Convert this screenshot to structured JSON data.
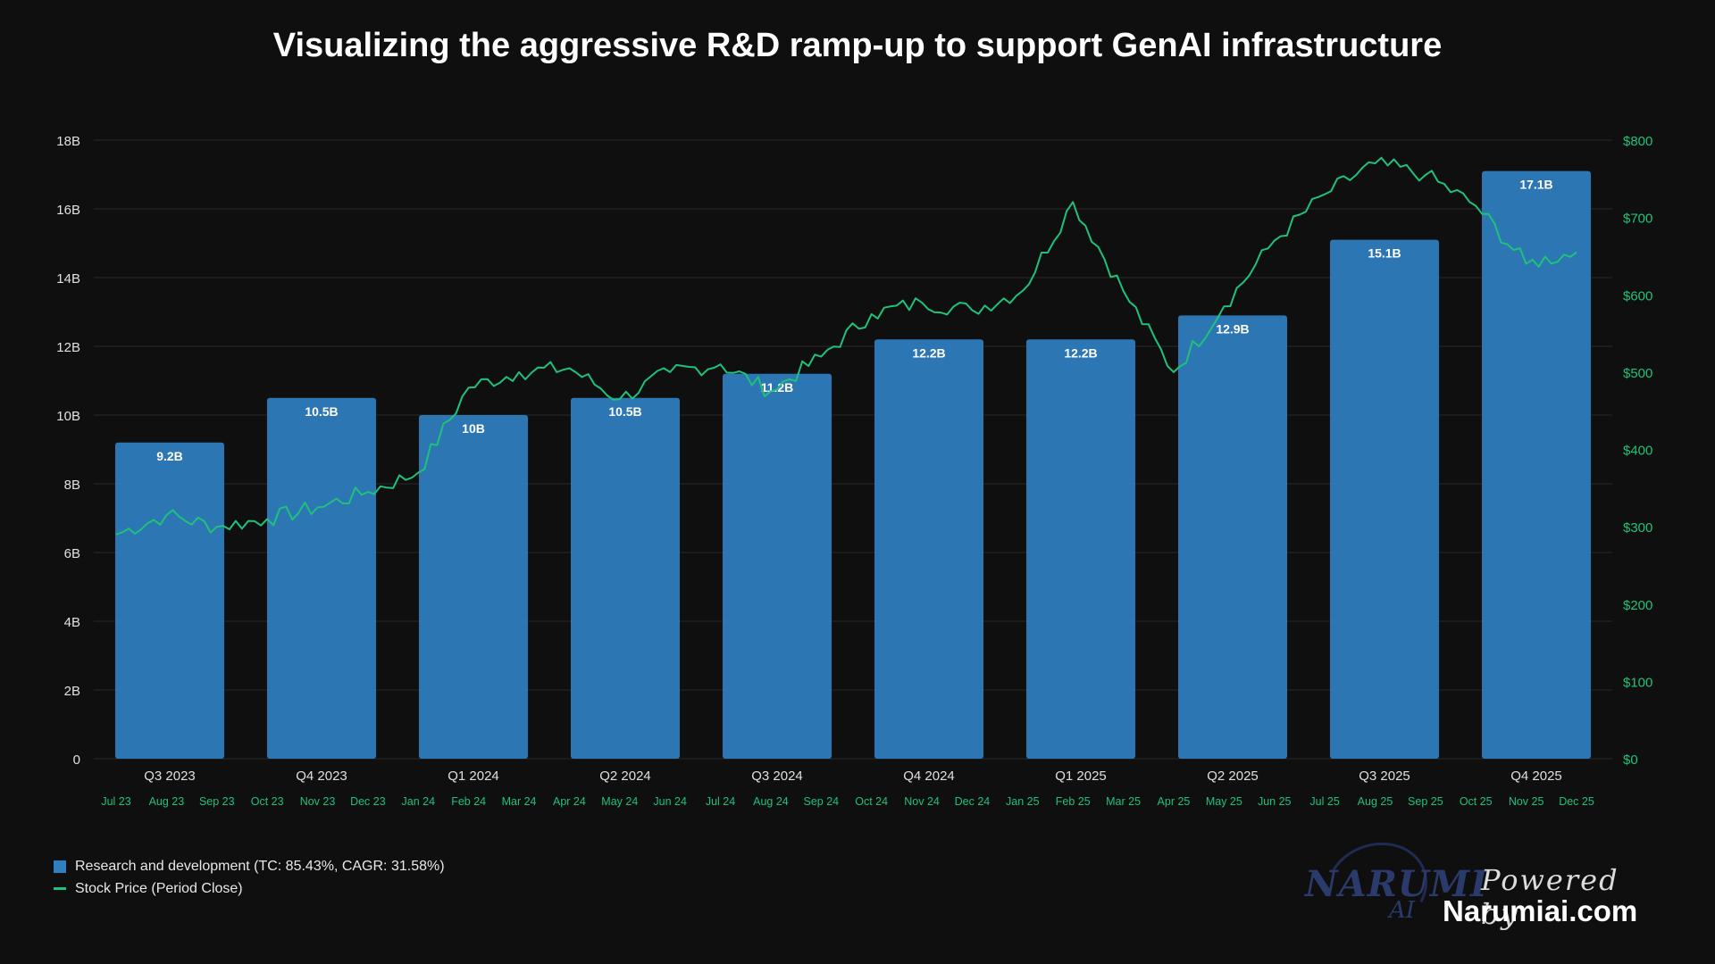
{
  "chart_data": {
    "type": "bar",
    "title": "Visualizing the aggressive R&D ramp-up to support GenAI infrastructure",
    "categories": [
      "Q3 2023",
      "Q4 2023",
      "Q1 2024",
      "Q2 2024",
      "Q3 2024",
      "Q4 2024",
      "Q1 2025",
      "Q2 2025",
      "Q3 2025",
      "Q4 2025"
    ],
    "series": [
      {
        "name": "Research and development (TC: 85.43%, CAGR: 31.58%)",
        "type": "bar",
        "axis": "left",
        "values": [
          9.2,
          10.5,
          10.0,
          10.5,
          11.2,
          12.2,
          12.2,
          12.9,
          15.1,
          17.1
        ],
        "labels": [
          "9.2B",
          "10.5B",
          "10B",
          "10.5B",
          "11.2B",
          "12.2B",
          "12.2B",
          "12.9B",
          "15.1B",
          "17.1B"
        ]
      },
      {
        "name": "Stock Price (Period Close)",
        "type": "line",
        "axis": "right",
        "x": [
          "Jul 23",
          "Aug 23",
          "Sep 23",
          "Oct 23",
          "Nov 23",
          "Dec 23",
          "Jan 24",
          "Feb 24",
          "Mar 24",
          "Apr 24",
          "May 24",
          "Jun 24",
          "Jul 24",
          "Aug 24",
          "Sep 24",
          "Oct 24",
          "Nov 24",
          "Dec 24",
          "Jan 25",
          "Feb 25",
          "Mar 25",
          "Apr 25",
          "May 25",
          "Jun 25",
          "Jul 25",
          "Aug 25",
          "Sep 25",
          "Oct 25",
          "Nov 25",
          "Dec 25"
        ],
        "values": [
          290,
          315,
          300,
          310,
          325,
          345,
          370,
          480,
          500,
          505,
          465,
          500,
          510,
          475,
          520,
          575,
          590,
          580,
          605,
          720,
          605,
          500,
          585,
          670,
          730,
          770,
          755,
          715,
          640,
          655
        ]
      }
    ],
    "left_axis": {
      "ticks": [
        "0",
        "2B",
        "4B",
        "6B",
        "8B",
        "10B",
        "12B",
        "14B",
        "16B",
        "18B"
      ],
      "ylim": [
        0,
        18
      ]
    },
    "right_axis": {
      "ticks": [
        "$0",
        "$100",
        "$200",
        "$300",
        "$400",
        "$500",
        "$600",
        "$700",
        "$800"
      ],
      "ylim": [
        0,
        800
      ]
    },
    "month_labels": [
      "Jul 23",
      "Aug 23",
      "Sep 23",
      "Oct 23",
      "Nov 23",
      "Dec 23",
      "Jan 24",
      "Feb 24",
      "Mar 24",
      "Apr 24",
      "May 24",
      "Jun 24",
      "Jul 24",
      "Aug 24",
      "Sep 24",
      "Oct 24",
      "Nov 24",
      "Dec 24",
      "Jan 25",
      "Feb 25",
      "Mar 25",
      "Apr 25",
      "May 25",
      "Jun 25",
      "Jul 25",
      "Aug 25",
      "Sep 25",
      "Oct 25",
      "Nov 25",
      "Dec 25"
    ],
    "grid": true,
    "legend_position": "bottom-left",
    "colors": {
      "bar": "#2f7fc1",
      "line": "#1fc27a",
      "grid": "#2a2a2a",
      "axis_text": "#e0e0e0",
      "right_axis_text": "#1fc27a"
    }
  },
  "legend": {
    "bar_label": "Research and development (TC: 85.43%, CAGR: 31.58%)",
    "line_label": "Stock Price (Period Close)"
  },
  "branding": {
    "logo_text": "NARUMI",
    "logo_sub": "AI",
    "powered_by": "Powered by",
    "site": "Narumiai.com"
  }
}
